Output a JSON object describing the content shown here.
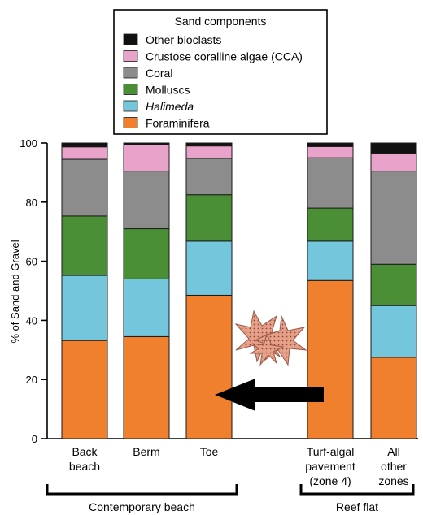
{
  "legend": {
    "title": "Sand components",
    "position": "top-center"
  },
  "chart_data": {
    "type": "bar",
    "stacked": true,
    "categories": [
      [
        "Back",
        "beach"
      ],
      [
        "Berm"
      ],
      [
        "Toe"
      ],
      [
        "Turf-algal",
        "pavement",
        "(zone 4)"
      ],
      [
        "All",
        "other",
        "zones"
      ]
    ],
    "ylabel": "% of Sand and Gravel",
    "ylim": [
      0,
      100
    ],
    "yticks": [
      0,
      20,
      40,
      60,
      80,
      100
    ],
    "grid": false,
    "groups": [
      {
        "label": "Contemporary beach",
        "categories": [
          0,
          1,
          2
        ]
      },
      {
        "label": "Reef flat",
        "categories": [
          3,
          4
        ]
      }
    ],
    "series": [
      {
        "name": "Foraminifera",
        "color": "#f07f2e",
        "italic": false,
        "values": [
          33.2,
          34.5,
          48.5,
          53.5,
          27.5
        ]
      },
      {
        "name": "Halimeda",
        "color": "#74c6dd",
        "italic": true,
        "values": [
          22.0,
          19.5,
          18.3,
          13.3,
          17.5
        ]
      },
      {
        "name": "Molluscs",
        "color": "#4a8f35",
        "italic": false,
        "values": [
          20.1,
          17.0,
          15.7,
          11.2,
          14.0
        ]
      },
      {
        "name": "Coral",
        "color": "#8c8c8c",
        "italic": false,
        "values": [
          19.2,
          19.5,
          12.3,
          17.0,
          31.5
        ]
      },
      {
        "name": "Crustose coralline algae (CCA)",
        "color": "#e9a2c9",
        "italic": false,
        "values": [
          4.2,
          9.0,
          4.2,
          3.8,
          6.0
        ]
      },
      {
        "name": "Other bioclasts",
        "color": "#111111",
        "italic": false,
        "values": [
          1.3,
          0.5,
          1.0,
          1.2,
          3.5
        ]
      }
    ],
    "annotations": [
      {
        "type": "arrow",
        "direction": "left",
        "color": "#000000"
      },
      {
        "type": "illustration",
        "subject": "foraminifera-icon"
      }
    ]
  }
}
